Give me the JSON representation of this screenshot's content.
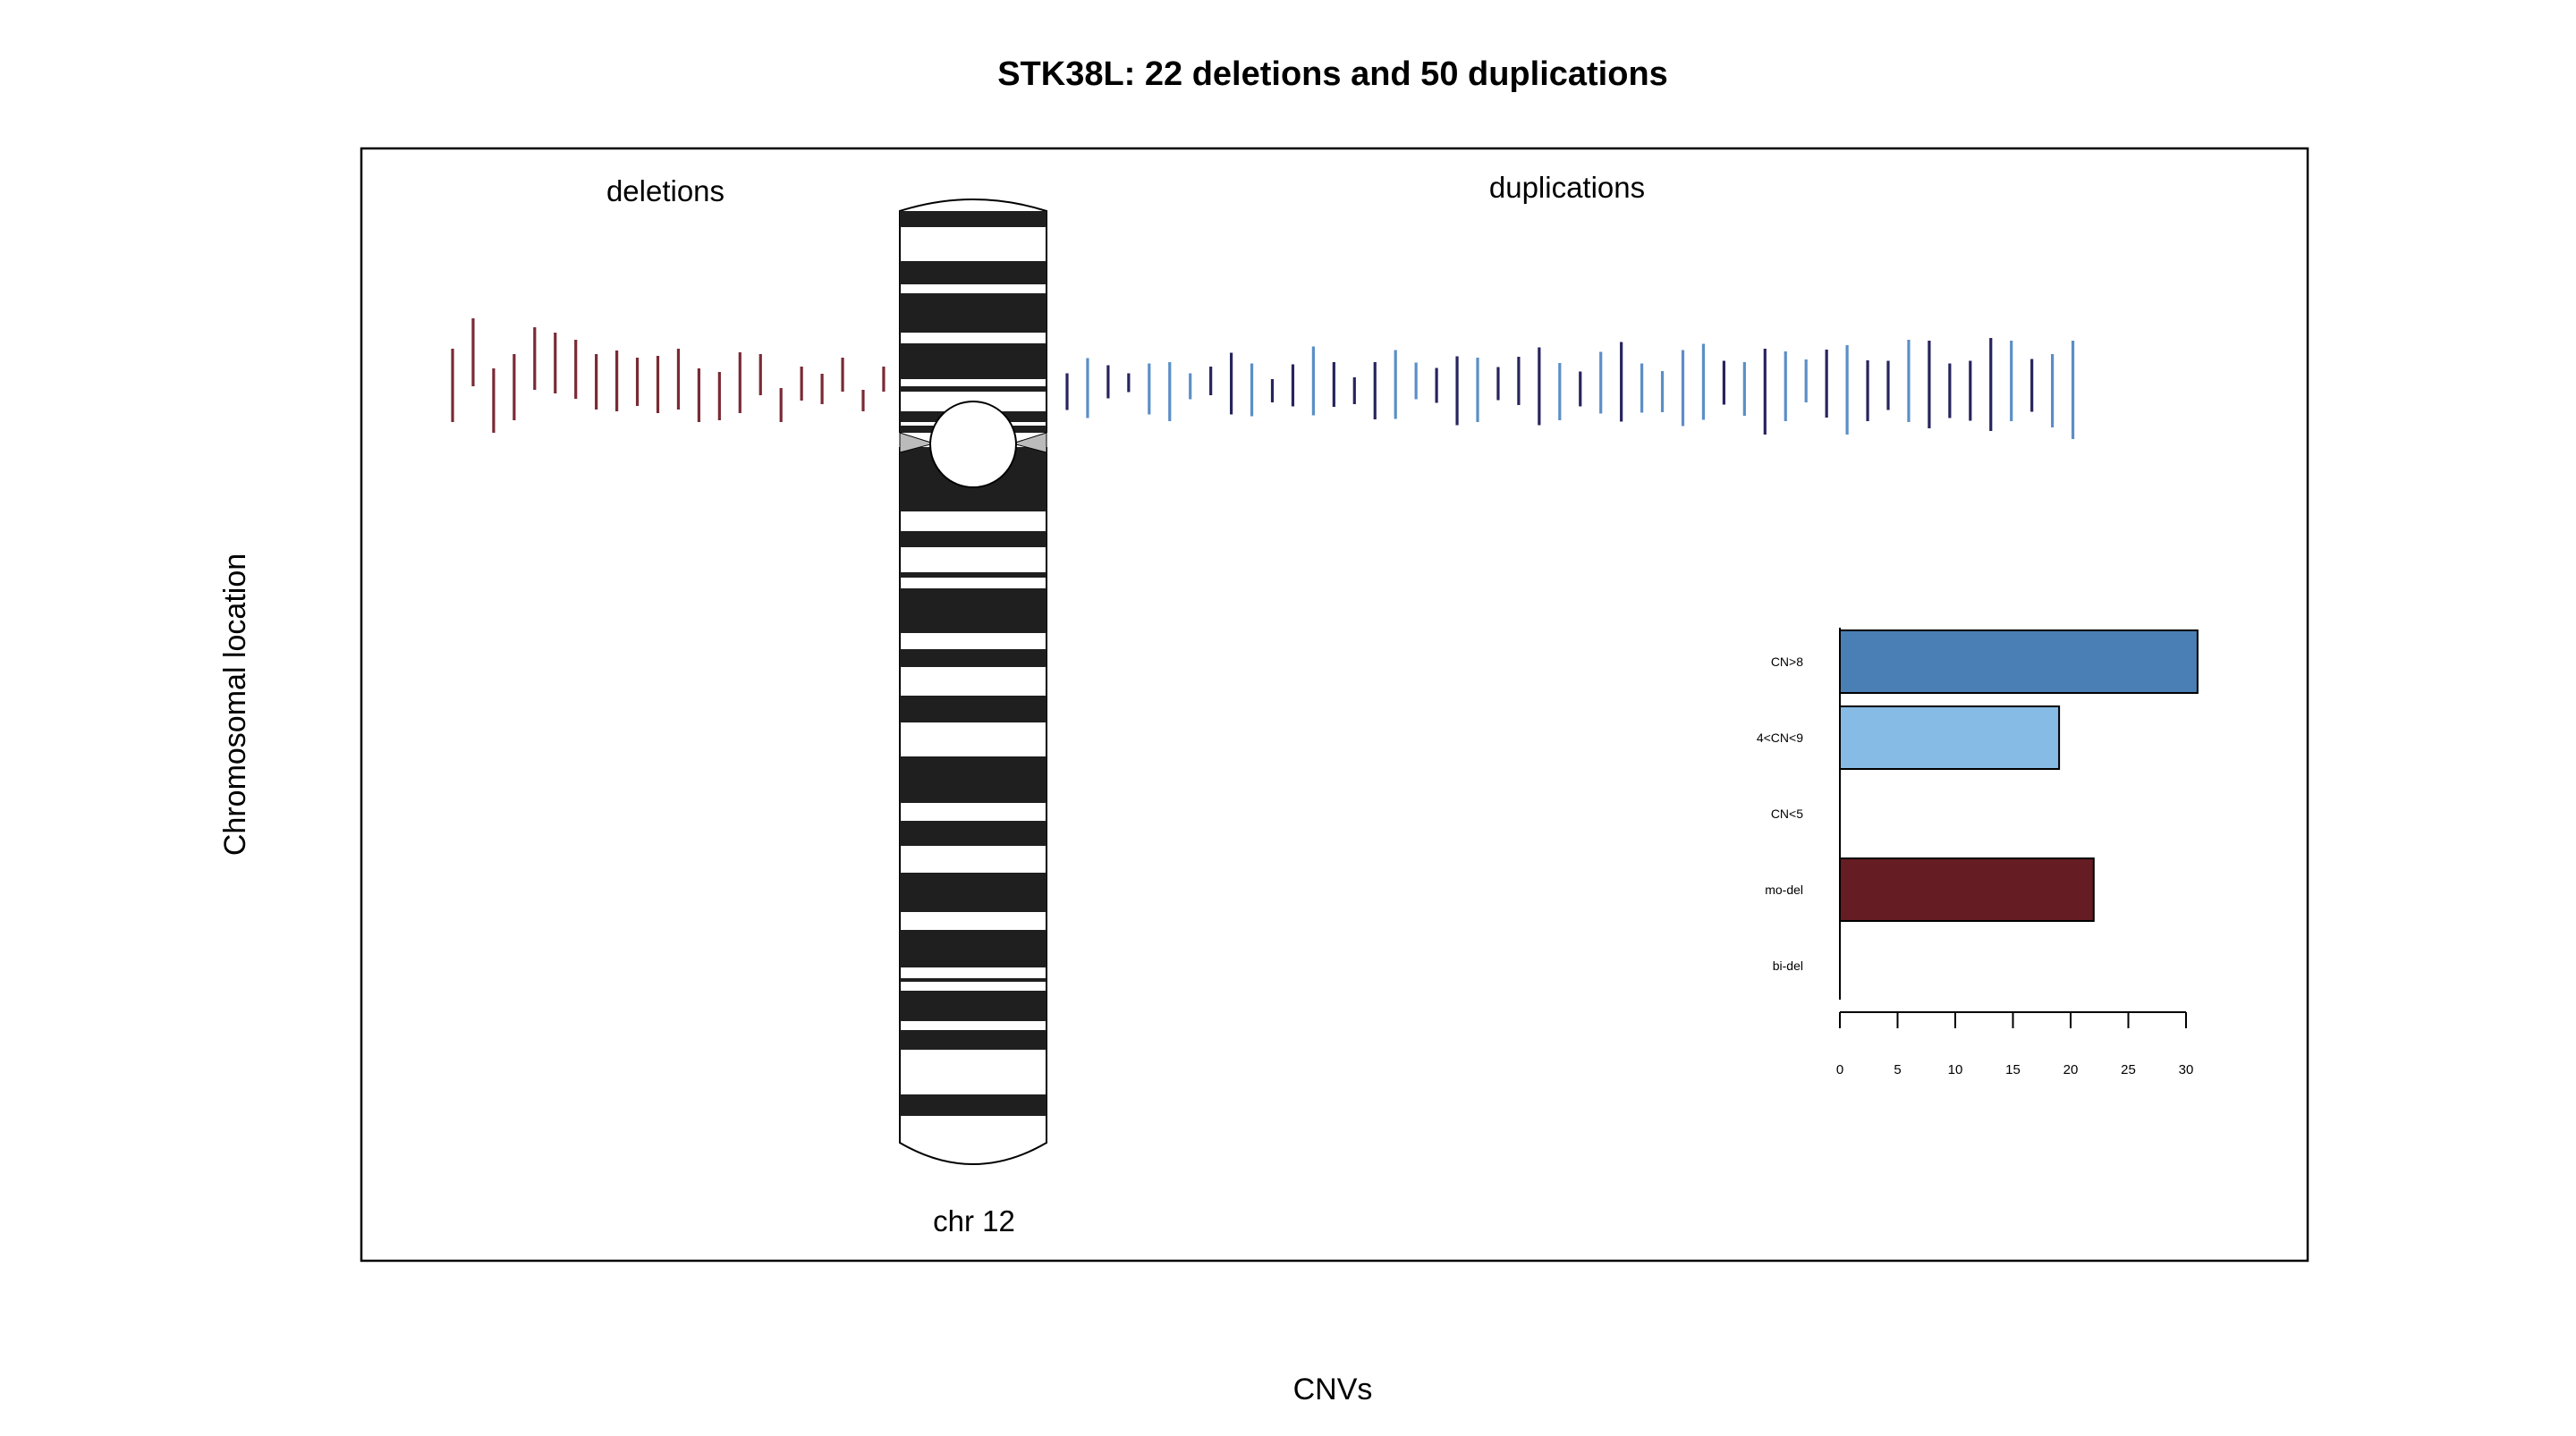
{
  "chart_data": [
    {
      "type": "ideogram",
      "title": "STK38L: 22 deletions and 50 duplications",
      "xlabel": "CNVs",
      "ylabel": "Chromosomal location",
      "chromosome_label": "chr 12",
      "deletions_label": "deletions",
      "duplications_label": "duplications",
      "deletion_count": 22,
      "duplication_count": 50,
      "colors": {
        "deletion": "#7a2a35",
        "dup_dark": "#27245e",
        "dup_light": "#5b8fc6",
        "band_dark": "#1f1f1f",
        "frame": "#000000"
      }
    },
    {
      "type": "bar",
      "orientation": "horizontal",
      "categories": [
        "CN>8",
        "4<CN<9",
        "CN<5",
        "mo-del",
        "bi-del"
      ],
      "values": [
        31,
        19,
        0,
        22,
        0
      ],
      "colors": [
        "#4a7fb5",
        "#85bbe4",
        "#000000",
        "#651c22",
        "#000000"
      ],
      "xlim": [
        0,
        30
      ],
      "xticks": [
        "0",
        "5",
        "10",
        "15",
        "20",
        "25",
        "30"
      ]
    }
  ]
}
